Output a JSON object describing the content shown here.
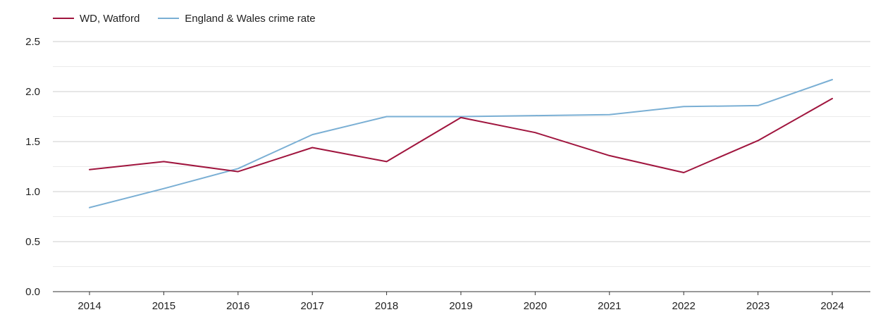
{
  "chart_data": {
    "type": "line",
    "title": "",
    "xlabel": "",
    "ylabel": "",
    "categories": [
      "2014",
      "2015",
      "2016",
      "2017",
      "2018",
      "2019",
      "2020",
      "2021",
      "2022",
      "2023",
      "2024"
    ],
    "ylim": [
      0,
      2.5
    ],
    "yticks": [
      "0.0",
      "0.5",
      "1.0",
      "1.5",
      "2.0",
      "2.5"
    ],
    "grid": true,
    "legend_position": "top-left",
    "series": [
      {
        "name": "WD, Watford",
        "color": "#a0153e",
        "values": [
          1.22,
          1.3,
          1.2,
          1.44,
          1.3,
          1.74,
          1.59,
          1.36,
          1.19,
          1.51,
          1.93
        ]
      },
      {
        "name": "England & Wales crime rate",
        "color": "#7aafd4",
        "values": [
          0.84,
          1.03,
          1.23,
          1.57,
          1.75,
          1.75,
          1.76,
          1.77,
          1.85,
          1.86,
          2.12
        ]
      }
    ]
  }
}
